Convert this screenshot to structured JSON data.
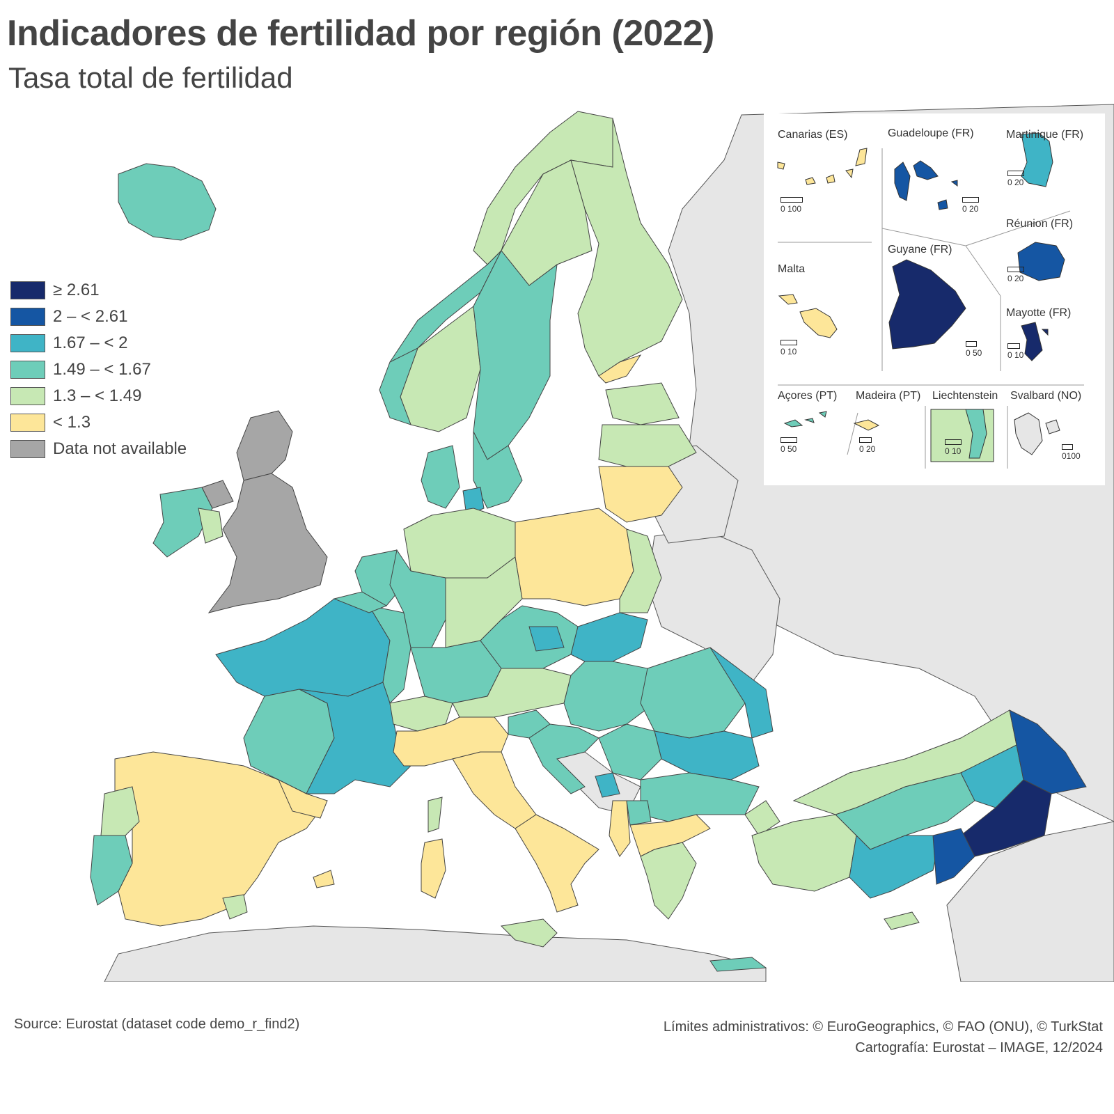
{
  "title": "Indicadores de fertilidad por región (2022)",
  "subtitle": "Tasa total de fertilidad",
  "legend": [
    {
      "label": "≥ 2.61",
      "color": "#172a6b"
    },
    {
      "label": "2 – < 2.61",
      "color": "#1556a3"
    },
    {
      "label": "1.67 – < 2",
      "color": "#3fb4c6"
    },
    {
      "label": "1.49 – < 1.67",
      "color": "#6ecdb9"
    },
    {
      "label": "1.3 – < 1.49",
      "color": "#c7e8b4"
    },
    {
      "label": "< 1.3",
      "color": "#fde699"
    },
    {
      "label": "Data not available",
      "color": "#a6a6a6"
    }
  ],
  "insets": {
    "canarias": {
      "label": "Canarias (ES)",
      "scale": "0   100"
    },
    "guadeloupe": {
      "label": "Guadeloupe (FR)",
      "scale": "0  20"
    },
    "martinique": {
      "label": "Martinique (FR)",
      "scale": "0  20"
    },
    "reunion": {
      "label": "Réunion (FR)",
      "scale": "0  20"
    },
    "malta": {
      "label": "Malta",
      "scale": "0   10"
    },
    "guyane": {
      "label": "Guyane (FR)",
      "scale": "0 50"
    },
    "mayotte": {
      "label": "Mayotte (FR)",
      "scale": "0  10"
    },
    "acores": {
      "label": "Açores (PT)",
      "scale": "0   50"
    },
    "madeira": {
      "label": "Madeira (PT)",
      "scale": "0  20"
    },
    "liechtenstein": {
      "label": "Liechtenstein",
      "scale": "0   10"
    },
    "svalbard": {
      "label": "Svalbard (NO)",
      "scale": "0100"
    }
  },
  "footer": {
    "source": "Source: Eurostat (dataset code demo_r_find2)",
    "boundaries": "Límites administrativos: © EuroGeographics, © FAO (ONU), © TurkStat",
    "cartography": "Cartografía: Eurostat – IMAGE, 12/2024"
  }
}
